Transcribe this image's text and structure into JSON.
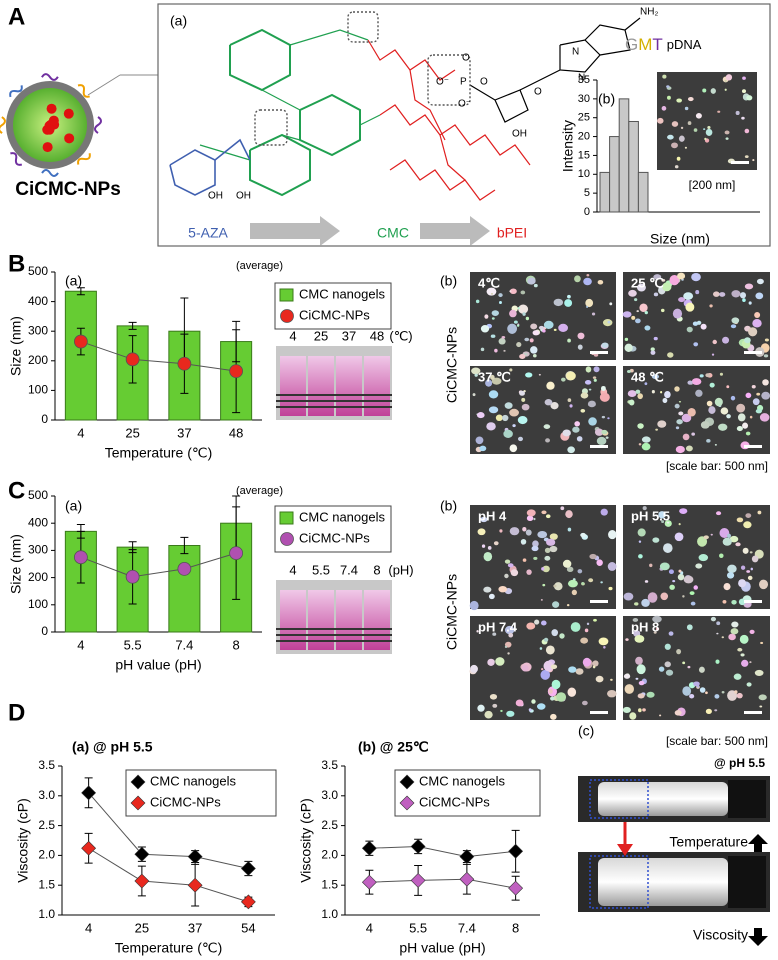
{
  "figure": {
    "A": "A",
    "B": "B",
    "C": "C",
    "D": "D"
  },
  "panel_a": {
    "sub": "(a)",
    "np": "CiCMC-NPs",
    "gmt": [
      "G",
      "M",
      "T"
    ],
    "pdna": "pDNA",
    "steps": [
      "5-AZA",
      "CMC",
      "bPEI"
    ],
    "chem": [
      "NH₂",
      "O",
      "P",
      "O⁻",
      "O⁻",
      "O",
      "OH",
      "O",
      "N",
      "N",
      "OH",
      "OH"
    ],
    "scale": "[200 nm]"
  },
  "panel_b": {
    "sub": "(b)",
    "side": "CiCMC-NPs",
    "sem": [
      "4℃",
      "25 ℃",
      "37 ℃",
      "48 ℃"
    ],
    "vials": [
      "4",
      "25",
      "37",
      "48",
      "(℃)"
    ],
    "scale": "[scale bar: 500 nm]"
  },
  "panel_c": {
    "sub": "(b)",
    "side": "CiCMC-NPs",
    "sem": [
      "pH 4",
      "pH 5.5",
      "pH 7.4",
      "pH 8"
    ],
    "vials": [
      "4",
      "5.5",
      "7.4",
      "8",
      "(pH)"
    ],
    "scale": "[scale bar: 500 nm]"
  },
  "panel_d": {
    "sub": "(c)",
    "cond": "@ pH 5.5",
    "up": "Temperature",
    "down": "Viscosity"
  },
  "chart_data": [
    {
      "type": "bar",
      "panel": "(b)",
      "ylabel": "Intensity",
      "xlabel": "Size (nm)",
      "categories": [
        null,
        null,
        null,
        null,
        null
      ],
      "values": [
        10.5,
        20,
        30,
        24,
        10.5
      ],
      "color": "#c8c8c8",
      "ylim": [
        0,
        35
      ],
      "yticks": [
        0,
        5,
        10,
        15,
        20,
        25,
        30,
        35
      ]
    },
    {
      "type": "combo",
      "panel": "(a)",
      "annotation": "(average)",
      "ylabel": "Size (nm)",
      "xlabel": "Temperature (℃)",
      "categories": [
        "4",
        "25",
        "37",
        "48"
      ],
      "ylim": [
        0,
        500
      ],
      "yticks": [
        0,
        100,
        200,
        300,
        400,
        500
      ],
      "series": [
        {
          "name": "CMC nanogels",
          "kind": "bar",
          "color": "#66cc33",
          "values": [
            435,
            318,
            300,
            265
          ],
          "errors": [
            12,
            12,
            112,
            68
          ]
        },
        {
          "name": "CiCMC-NPs",
          "kind": "line",
          "marker": "circle",
          "color": "#e8281e",
          "values": [
            265,
            205,
            190,
            165
          ],
          "errors": [
            45,
            80,
            100,
            140
          ]
        }
      ]
    },
    {
      "type": "combo",
      "panel": "(a)",
      "annotation": "(average)",
      "ylabel": "Size (nm)",
      "xlabel": "pH value (pH)",
      "categories": [
        "4",
        "5.5",
        "7.4",
        "8"
      ],
      "ylim": [
        0,
        500
      ],
      "yticks": [
        0,
        100,
        200,
        300,
        400,
        500
      ],
      "series": [
        {
          "name": "CMC nanogels",
          "kind": "bar",
          "color": "#66cc33",
          "values": [
            370,
            312,
            318,
            400
          ],
          "errors": [
            25,
            20,
            30,
            100
          ]
        },
        {
          "name": "CiCMC-NPs",
          "kind": "line",
          "marker": "circle",
          "color": "#b050b0",
          "values": [
            275,
            203,
            232,
            290
          ],
          "errors": [
            95,
            100,
            12,
            170
          ]
        }
      ]
    },
    {
      "type": "line",
      "title": "(a) @ pH 5.5",
      "ylabel": "Viscosity (cP)",
      "xlabel": "Temperature (℃)",
      "categories": [
        "4",
        "25",
        "37",
        "54"
      ],
      "ylim": [
        1,
        3.5
      ],
      "yticks": [
        {
          "value": 1,
          "label": "1.0"
        },
        1.5,
        {
          "value": 2,
          "label": "2.0"
        },
        2.5,
        {
          "value": 3,
          "label": "3.0"
        },
        3.5
      ],
      "series": [
        {
          "name": "CMC nanogels",
          "marker": "diamond",
          "color": "#000000",
          "values": [
            3.05,
            2.02,
            1.98,
            1.78
          ],
          "errors": [
            0.25,
            0.12,
            0.1,
            0.12
          ]
        },
        {
          "name": "CiCMC-NPs",
          "marker": "diamond",
          "color": "#e8281e",
          "values": [
            2.12,
            1.57,
            1.5,
            1.22
          ],
          "errors": [
            0.25,
            0.25,
            0.35,
            0.08
          ]
        }
      ]
    },
    {
      "type": "line",
      "title": "(b) @ 25℃",
      "ylabel": "Viscosity (cP)",
      "xlabel": "pH value (pH)",
      "categories": [
        "4",
        "5.5",
        "7.4",
        "8"
      ],
      "ylim": [
        1,
        3.5
      ],
      "yticks": [
        {
          "value": 1,
          "label": "1.0"
        },
        1.5,
        {
          "value": 2,
          "label": "2.0"
        },
        2.5,
        {
          "value": 3,
          "label": "3.0"
        },
        3.5
      ],
      "series": [
        {
          "name": "CMC nanogels",
          "marker": "diamond",
          "color": "#000000",
          "values": [
            2.12,
            2.15,
            1.98,
            2.07
          ],
          "errors": [
            0.12,
            0.12,
            0.1,
            0.35
          ]
        },
        {
          "name": "CiCMC-NPs",
          "marker": "diamond",
          "color": "#c060c0",
          "values": [
            1.55,
            1.58,
            1.6,
            1.45
          ],
          "errors": [
            0.2,
            0.25,
            0.25,
            0.2
          ]
        }
      ]
    }
  ]
}
